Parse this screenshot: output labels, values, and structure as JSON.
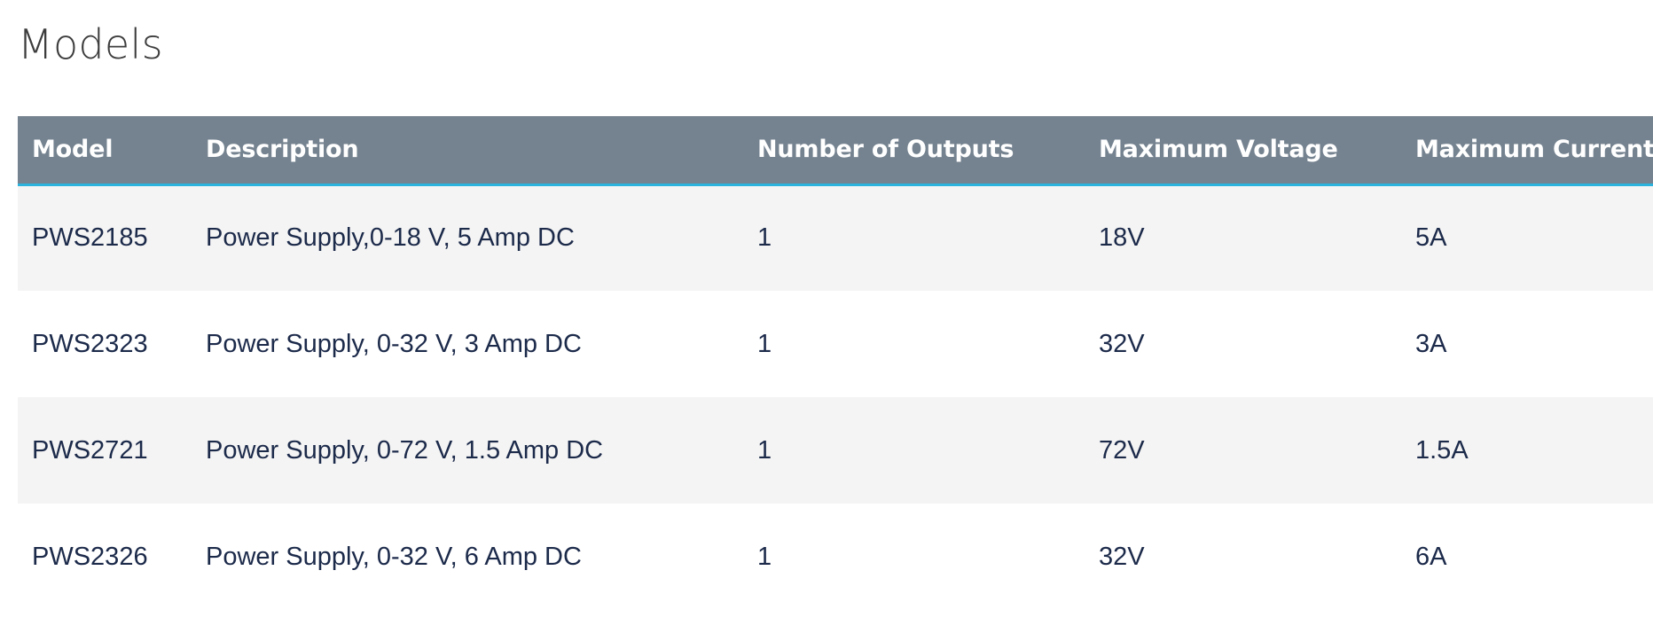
{
  "page": {
    "title": "Models"
  },
  "table": {
    "headers": [
      "Model",
      "Description",
      "Number of Outputs",
      "Maximum Voltage",
      "Maximum Current"
    ],
    "rows": [
      [
        "PWS2185",
        "Power Supply,0-18 V, 5 Amp DC",
        "1",
        "18V",
        "5A"
      ],
      [
        "PWS2323",
        "Power Supply, 0-32 V, 3 Amp DC",
        "1",
        "32V",
        "3A"
      ],
      [
        "PWS2721",
        "Power Supply, 0-72 V, 1.5 Amp DC",
        "1",
        "72V",
        "1.5A"
      ],
      [
        "PWS2326",
        "Power Supply, 0-32 V, 6 Amp DC",
        "1",
        "32V",
        "6A"
      ]
    ]
  },
  "colors": {
    "header_bg": "#758390",
    "header_accent": "#2bb3dd",
    "row_alt_bg": "#f4f4f4",
    "cell_text": "#1c2a4a"
  }
}
